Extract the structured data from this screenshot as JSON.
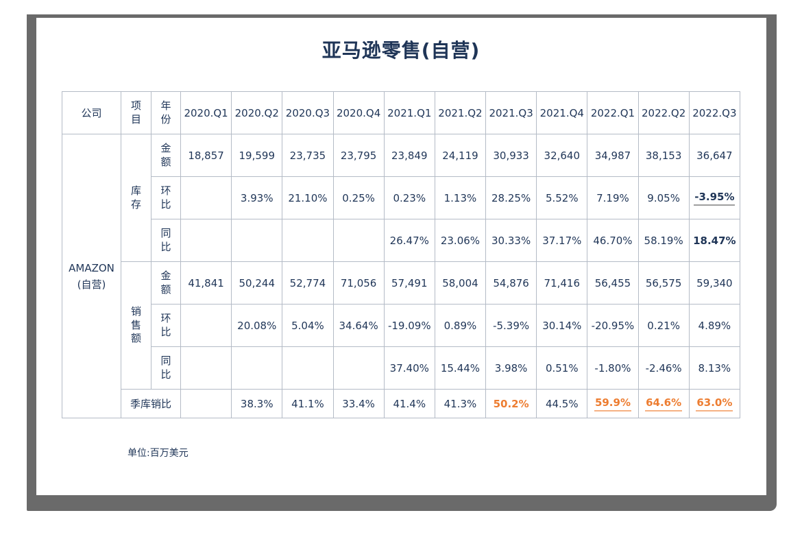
{
  "ui": {
    "title": "亚马逊零售(自营)",
    "footnote": "单位:百万美元"
  },
  "colors": {
    "navy": "#1F3557",
    "orange": "#ED7D31",
    "table_border": "#B4BBC6",
    "frame_gray": "#6A6A6A",
    "underline_gray": "#9E9E9E",
    "underline_orange": "#F5B183"
  },
  "chart_data": {
    "type": "table",
    "title": "亚马逊零售(自营)",
    "unit_note": "单位:百万美元",
    "header": {
      "company": "公司",
      "item": "项目",
      "year": "年份"
    },
    "quarters": [
      "2020.Q1",
      "2020.Q2",
      "2020.Q3",
      "2020.Q4",
      "2021.Q1",
      "2021.Q2",
      "2021.Q3",
      "2021.Q4",
      "2022.Q1",
      "2022.Q2",
      "2022.Q3"
    ],
    "company": "AMAZON\n(自营)",
    "groups": [
      {
        "label": "库存",
        "rows": [
          {
            "name": "金额",
            "values": [
              "18,857",
              "19,599",
              "23,735",
              "23,795",
              "23,849",
              "24,119",
              "30,933",
              "32,640",
              "34,987",
              "38,153",
              "36,647"
            ],
            "marks": {}
          },
          {
            "name": "环比",
            "values": [
              "",
              "3.93%",
              "21.10%",
              "0.25%",
              "0.23%",
              "1.13%",
              "28.25%",
              "5.52%",
              "7.19%",
              "9.05%",
              "-3.95%"
            ],
            "marks": {
              "10": "bold underline-gray"
            }
          },
          {
            "name": "同比",
            "values": [
              "",
              "",
              "",
              "",
              "26.47%",
              "23.06%",
              "30.33%",
              "37.17%",
              "46.70%",
              "58.19%",
              "18.47%"
            ],
            "marks": {
              "10": "bold"
            }
          }
        ]
      },
      {
        "label": "销售额",
        "rows": [
          {
            "name": "金额",
            "values": [
              "41,841",
              "50,244",
              "52,774",
              "71,056",
              "57,491",
              "58,004",
              "54,876",
              "71,416",
              "56,455",
              "56,575",
              "59,340"
            ],
            "marks": {}
          },
          {
            "name": "环比",
            "values": [
              "",
              "20.08%",
              "5.04%",
              "34.64%",
              "-19.09%",
              "0.89%",
              "-5.39%",
              "30.14%",
              "-20.95%",
              "0.21%",
              "4.89%"
            ],
            "marks": {}
          },
          {
            "name": "同比",
            "values": [
              "",
              "",
              "",
              "",
              "37.40%",
              "15.44%",
              "3.98%",
              "0.51%",
              "-1.80%",
              "-2.46%",
              "8.13%"
            ],
            "marks": {}
          }
        ]
      }
    ],
    "ratio_row": {
      "label": "季库销比",
      "values": [
        "",
        "38.3%",
        "41.1%",
        "33.4%",
        "41.4%",
        "41.3%",
        "50.2%",
        "44.5%",
        "59.9%",
        "64.6%",
        "63.0%"
      ],
      "marks": {
        "6": "orange bold",
        "8": "orange bold underline-orange",
        "9": "orange bold underline-orange",
        "10": "orange bold underline-orange"
      }
    }
  }
}
